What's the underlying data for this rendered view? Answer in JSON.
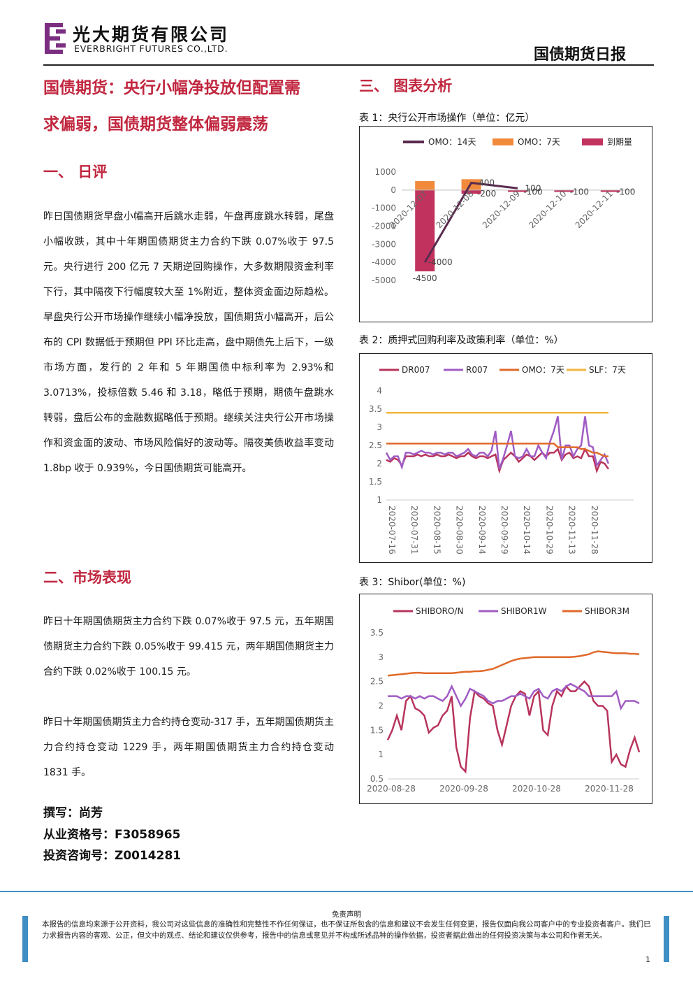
{
  "header": {
    "company_cn": "光大期货有限公司",
    "company_en": "EVERBRIGHT FUTURES CO.,LTD.",
    "report_type": "国债期货日报",
    "brand_color": "#7b2d7f"
  },
  "article": {
    "title_line1": "国债期货：央行小幅净投放但配置需",
    "title_line2": "求偏弱，国债期货整体偏弱震荡",
    "section1_heading": "一、  日评",
    "section1_paragraph": "昨日国债期货早盘小幅高开后跳水走弱，午盘再度跳水转弱，尾盘小幅收跌，其中十年期国债期货主力合约下跌 0.07%收于 97.5 元。央行进行 200 亿元 7 天期逆回购操作，大多数期限资金利率下行，其中隔夜下行幅度较大至 1%附近，整体资金面边际趋松。早盘央行公开市场操作继续小幅净投放，国债期货小幅高开，后公布的 CPI 数据低于预期但 PPI 环比走高，盘中期债先上后下，一级市场方面，发行的 2 年和 5 年期国债中标利率为 2.93%和 3.0713%，投标倍数 5.46 和 3.18，略低于预期，期债午盘跳水转弱，盘后公布的金融数据略低于预期。继续关注央行公开市场操作和资金面的波动、市场风险偏好的波动等。隔夜美债收益率变动 1.8bp 收于 0.939%，今日国债期货可能高开。",
    "section2_heading": "二、市场表现",
    "section2_paragraph1": "昨日十年期国债期货主力合约下跌 0.07%收于 97.5 元，五年期国债期货主力合约下跌 0.05%收于 99.415 元，两年期国债期货主力合约下跌 0.02%收于 100.15 元。",
    "section2_paragraph2": "昨日十年期国债期货主力合约持仓变动-317 手，五年期国债期货主力合约持仓变动 1229 手，两年期国债期货主力合约持仓变动 1831 手。",
    "author": "撰写：尚芳",
    "license": "从业资格号：F3058965",
    "consult": "投资咨询号：Z0014281"
  },
  "charts_section": {
    "heading": "三、  图表分析",
    "chart1_caption": "表 1：央行公开市场操作（单位：亿元）",
    "chart2_caption": "表 2：质押式回购利率及政策利率（单位：%）",
    "chart3_caption": "表 3：Shibor(单位：%)"
  },
  "chart_data": [
    {
      "type": "bar",
      "categories": [
        "2020-12-07",
        "2020-12-08",
        "2020-12-09",
        "2020-12-10",
        "2020-12-11"
      ],
      "series": [
        {
          "name": "OMO：14天",
          "kind": "line",
          "color": "#5a2a4e",
          "values": [
            -4000,
            400,
            100,
            null,
            null
          ],
          "labels": [
            "-4000",
            "400",
            "100",
            "",
            ""
          ]
        },
        {
          "name": "OMO：7天",
          "kind": "bar",
          "color": "#f28a3c",
          "values": [
            500,
            600,
            0,
            0,
            0
          ],
          "labels": [
            "",
            "",
            "",
            "",
            ""
          ]
        },
        {
          "name": "到期量",
          "kind": "bar",
          "color": "#c2325e",
          "values": [
            -4500,
            -200,
            -100,
            -100,
            -100
          ],
          "labels": [
            "-4500",
            "-200",
            "-100",
            "-100",
            "-100"
          ]
        }
      ],
      "y_ticks": [
        1000,
        0,
        -1000,
        -2000,
        -3000,
        -4000,
        -5000
      ],
      "ylim": [
        -5000,
        1000
      ],
      "legend": "top"
    },
    {
      "type": "line",
      "x_ticks": [
        "2020-07-16",
        "2020-07-31",
        "2020-08-15",
        "2020-08-30",
        "2020-09-14",
        "2020-09-29",
        "2020-10-14",
        "2020-10-29",
        "2020-11-13",
        "2020-11-28"
      ],
      "y_ticks": [
        4,
        3.5,
        3,
        2.5,
        2,
        1.5,
        1
      ],
      "ylim": [
        1,
        4
      ],
      "legend": "top",
      "series": [
        {
          "name": "DR007",
          "color": "#b8345c",
          "values": [
            2.1,
            2.05,
            2.15,
            2.1,
            1.95,
            2.2,
            2.2,
            2.2,
            2.25,
            2.2,
            2.25,
            2.2,
            2.2,
            2.25,
            2.2,
            2.2,
            2.25,
            2.2,
            2.15,
            2.2,
            2.2,
            2.3,
            2.2,
            2.15,
            2.2,
            2.2,
            2.15,
            2.2,
            2.25,
            1.8,
            2.1,
            2.2,
            2.3,
            2.2,
            2.05,
            2.15,
            2.25,
            2.2,
            2.1,
            2.2,
            2.3,
            2.2,
            2.3,
            2.3,
            2.4,
            2.1,
            2.25,
            2.3,
            2.15,
            2.2,
            2.15,
            2.4,
            2.2,
            2.2,
            1.8,
            2.05,
            2.0,
            1.85
          ]
        },
        {
          "name": "R007",
          "color": "#a05cc4",
          "values": [
            2.3,
            2.1,
            2.2,
            2.2,
            1.9,
            2.3,
            2.3,
            2.25,
            2.3,
            2.35,
            2.3,
            2.3,
            2.25,
            2.3,
            2.3,
            2.25,
            2.3,
            2.3,
            2.2,
            2.25,
            2.3,
            2.4,
            2.25,
            2.2,
            2.3,
            2.3,
            2.2,
            2.35,
            2.9,
            1.85,
            2.15,
            2.5,
            2.9,
            2.2,
            2.15,
            2.2,
            2.4,
            2.2,
            2.2,
            2.5,
            2.3,
            2.15,
            2.6,
            2.9,
            3.3,
            2.1,
            2.5,
            2.5,
            2.2,
            2.4,
            2.5,
            3.3,
            2.5,
            2.45,
            1.95,
            2.1,
            2.25,
            2.0
          ]
        },
        {
          "name": "OMO：7天",
          "color": "#e0692a",
          "values": [
            2.55,
            2.55,
            2.55,
            2.55,
            2.55,
            2.55,
            2.55,
            2.55,
            2.55,
            2.55,
            2.55,
            2.55,
            2.55,
            2.55,
            2.55,
            2.55,
            2.55,
            2.55,
            2.55,
            2.55,
            2.55,
            2.55,
            2.55,
            2.55,
            2.55,
            2.55,
            2.55,
            2.55,
            2.55,
            2.55,
            2.55,
            2.55,
            2.55,
            2.55,
            2.55,
            2.55,
            2.55,
            2.55,
            2.55,
            2.55,
            2.55,
            2.55,
            2.55,
            2.55,
            2.45,
            2.45,
            2.45,
            2.45,
            2.45,
            2.45,
            2.4,
            2.4,
            2.35,
            2.3,
            2.3,
            2.25,
            2.2,
            2.2
          ]
        },
        {
          "name": "SLF：7天",
          "color": "#f2b63c",
          "values": [
            3.4,
            3.4,
            3.4,
            3.4,
            3.4,
            3.4,
            3.4,
            3.4,
            3.4,
            3.4,
            3.4,
            3.4,
            3.4,
            3.4,
            3.4,
            3.4,
            3.4,
            3.4,
            3.4,
            3.4,
            3.4,
            3.4,
            3.4,
            3.4,
            3.4,
            3.4,
            3.4,
            3.4,
            3.4,
            3.4,
            3.4,
            3.4,
            3.4,
            3.4,
            3.4,
            3.4,
            3.4,
            3.4,
            3.4,
            3.4,
            3.4,
            3.4,
            3.4,
            3.4,
            3.4,
            3.4,
            3.4,
            3.4,
            3.4,
            3.4,
            3.4,
            3.4,
            3.4,
            3.4,
            3.4,
            3.4,
            3.4,
            3.4
          ]
        }
      ]
    },
    {
      "type": "line",
      "x_ticks": [
        "2020-08-28",
        "2020-09-28",
        "2020-10-28",
        "2020-11-28"
      ],
      "y_ticks": [
        3.5,
        3,
        2.5,
        2,
        1.5,
        1,
        0.5
      ],
      "ylim": [
        0.5,
        3.5
      ],
      "legend": "top",
      "series": [
        {
          "name": "SHIBORO/N",
          "color": "#b8345c",
          "values": [
            1.3,
            1.5,
            1.8,
            1.5,
            2.1,
            2.2,
            1.95,
            1.9,
            1.8,
            1.45,
            1.55,
            1.6,
            1.8,
            1.9,
            2.2,
            1.15,
            0.75,
            0.65,
            1.75,
            2.3,
            2.2,
            2.15,
            2.05,
            2.0,
            1.5,
            1.2,
            1.6,
            2.0,
            2.2,
            2.3,
            2.25,
            1.8,
            2.2,
            2.3,
            1.5,
            1.4,
            2.0,
            2.3,
            2.2,
            2.4,
            2.3,
            2.3,
            2.4,
            2.5,
            2.4,
            2.1,
            2.0,
            2.0,
            1.9,
            0.85,
            1.0,
            0.8,
            0.75,
            1.1,
            1.35,
            1.05
          ]
        },
        {
          "name": "SHIBOR1W",
          "color": "#a05cc4",
          "values": [
            2.2,
            2.2,
            2.2,
            2.15,
            2.2,
            2.2,
            2.15,
            2.2,
            2.15,
            2.2,
            2.2,
            2.15,
            2.1,
            2.2,
            2.4,
            2.2,
            2.0,
            2.15,
            2.35,
            2.3,
            2.25,
            2.2,
            2.1,
            2.05,
            2.1,
            2.1,
            2.15,
            2.2,
            2.2,
            2.25,
            2.2,
            2.15,
            2.3,
            2.35,
            2.2,
            2.15,
            2.3,
            2.35,
            2.3,
            2.4,
            2.45,
            2.4,
            2.35,
            2.3,
            2.2,
            2.2,
            2.2,
            2.2,
            2.2,
            2.2,
            2.3,
            1.95,
            2.1,
            2.1,
            2.1,
            2.05
          ]
        },
        {
          "name": "SHIBOR3M",
          "color": "#e0692a",
          "values": [
            2.62,
            2.63,
            2.64,
            2.65,
            2.66,
            2.67,
            2.68,
            2.68,
            2.67,
            2.67,
            2.67,
            2.67,
            2.67,
            2.67,
            2.67,
            2.68,
            2.69,
            2.7,
            2.7,
            2.71,
            2.71,
            2.72,
            2.74,
            2.76,
            2.8,
            2.84,
            2.88,
            2.92,
            2.95,
            2.97,
            2.98,
            2.99,
            3.0,
            3.0,
            3.0,
            3.0,
            3.0,
            3.0,
            3.0,
            3.0,
            3.0,
            3.01,
            3.02,
            3.04,
            3.06,
            3.1,
            3.12,
            3.11,
            3.1,
            3.09,
            3.08,
            3.08,
            3.08,
            3.07,
            3.07,
            3.06
          ]
        }
      ]
    }
  ],
  "footer": {
    "disclaimer_title": "免责声明",
    "disclaimer_text": "本报告的信息均来源于公开资料，我公司对这些信息的准确性和完整性不作任何保证，也不保证所包含的信息和建议不会发生任何变更，报告仅面向我公司客户中的专业投资者客户。我们已力求报告内容的客观、公正，但文中的观点、结论和建议仅供参考，报告中的信息或意见并不构成所述品种的操作依据，投资者据此做出的任何投资决策与本公司和作者无关。",
    "page_number": "1"
  }
}
